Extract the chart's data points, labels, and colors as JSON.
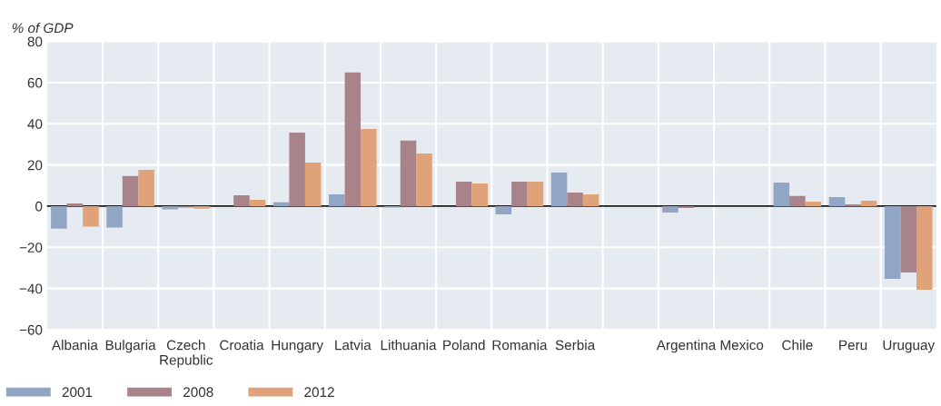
{
  "chart_data": {
    "type": "bar",
    "ylabel": "% of GDP",
    "categories": [
      "Albania",
      "Bulgaria",
      "Czech\nRepublic",
      "Croatia",
      "Hungary",
      "Latvia",
      "Lithuania",
      "Poland",
      "Romania",
      "Serbia",
      null,
      "Argentina",
      "Mexico",
      "Chile",
      "Peru",
      "Uruguay"
    ],
    "series": [
      {
        "name": "2001",
        "color": "#91a6c4",
        "values": [
          -10.9,
          -10.4,
          -1.6,
          null,
          1.8,
          5.7,
          -0.7,
          null,
          -4.0,
          16.3,
          null,
          -3.1,
          null,
          11.5,
          4.4,
          -35.3
        ]
      },
      {
        "name": "2008",
        "color": "#a8838a",
        "values": [
          1.3,
          14.6,
          -0.7,
          5.3,
          35.7,
          64.9,
          31.8,
          11.9,
          11.9,
          6.6,
          null,
          -0.9,
          null,
          4.9,
          0.9,
          -32.2
        ]
      },
      {
        "name": "2012",
        "color": "#e0a379",
        "values": [
          -10.0,
          17.6,
          -1.2,
          3.1,
          21.2,
          37.5,
          25.6,
          11.0,
          11.9,
          5.7,
          null,
          null,
          null,
          2.2,
          2.6,
          -40.6
        ]
      }
    ],
    "ylim": [
      -60,
      80
    ],
    "yticks": [
      -60,
      -40,
      -20,
      0,
      20,
      40,
      60,
      80
    ],
    "ref_lines": [
      {
        "axis": "y",
        "value": 0,
        "color": "#1a1a1a"
      }
    ],
    "grid": true,
    "legend": "bottom left"
  }
}
